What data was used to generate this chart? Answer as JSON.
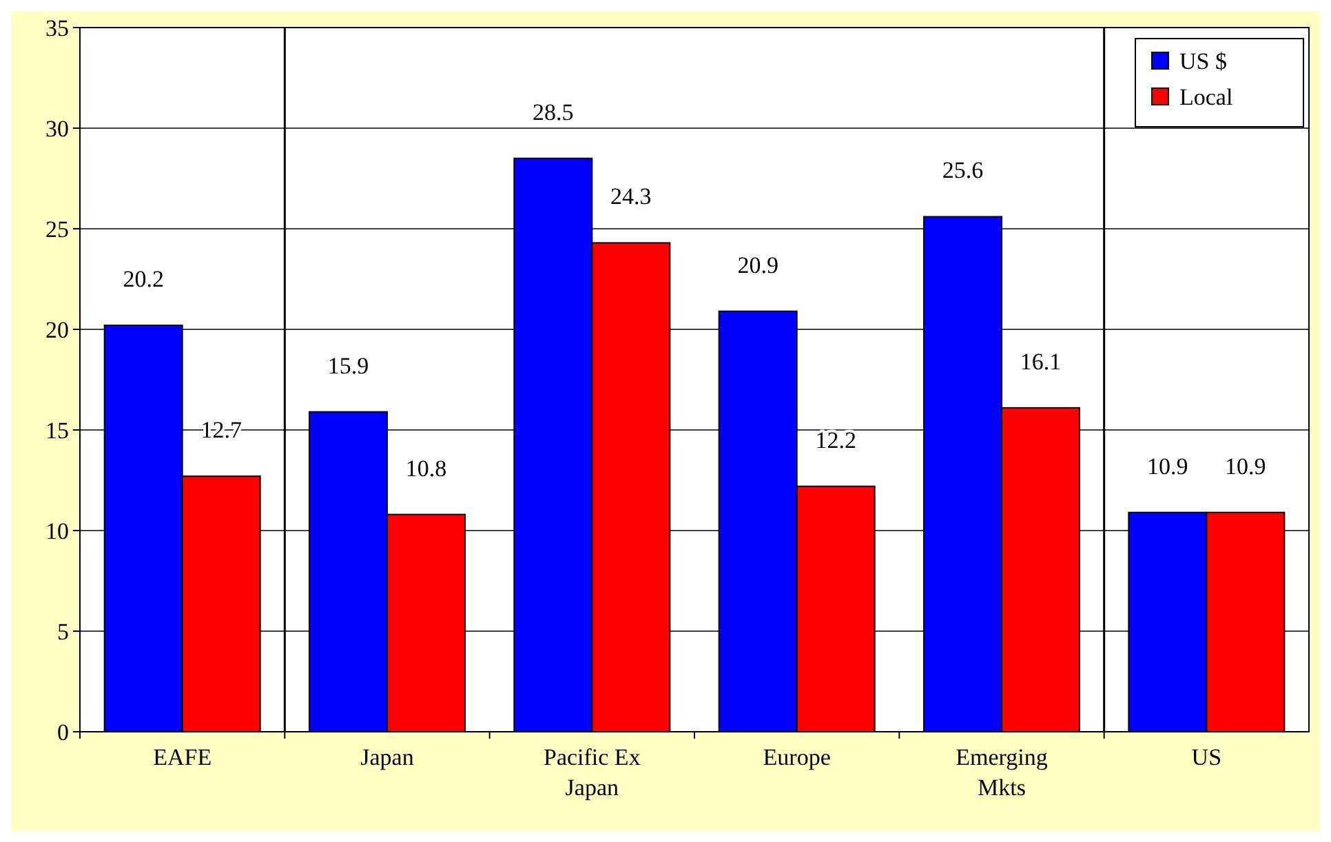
{
  "chart_data": {
    "type": "bar",
    "categories": [
      "EAFE",
      "Japan",
      "Pacific Ex Japan",
      "Europe",
      "Emerging Mkts",
      "US"
    ],
    "series": [
      {
        "name": "US $",
        "color": "#0000ff",
        "values": [
          20.2,
          15.9,
          28.5,
          20.9,
          25.6,
          10.9
        ]
      },
      {
        "name": "Local",
        "color": "#ff0000",
        "values": [
          12.7,
          10.8,
          24.3,
          12.2,
          16.1,
          10.9
        ]
      }
    ],
    "ylim": [
      0,
      35
    ],
    "yticks": [
      0,
      5,
      10,
      15,
      20,
      25,
      30,
      35
    ],
    "grid": "y",
    "legend": "top right",
    "data_labels": true
  }
}
